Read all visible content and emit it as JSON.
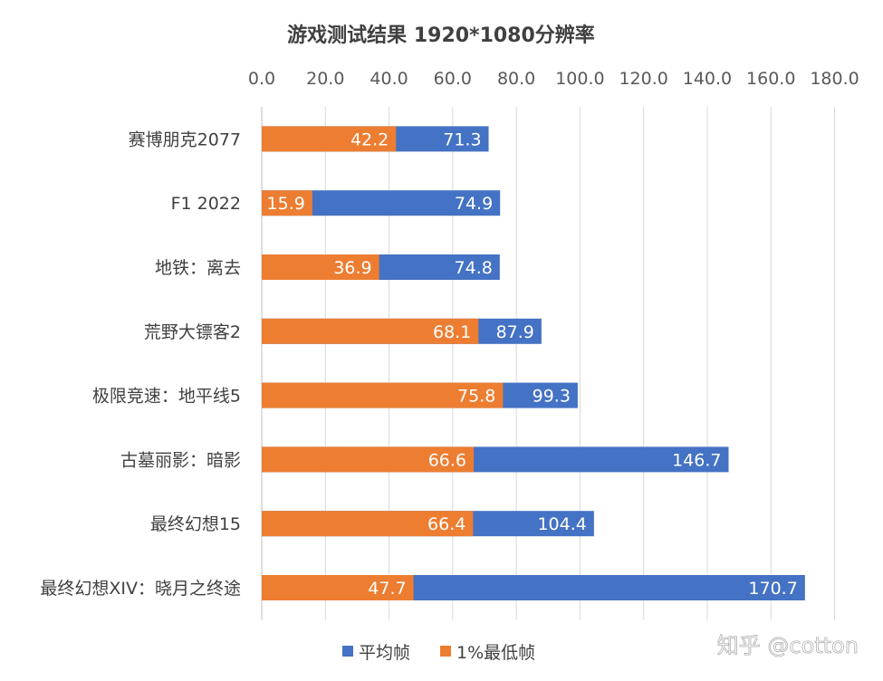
{
  "chart_data": {
    "type": "bar",
    "orientation": "horizontal",
    "stacking": "overlay",
    "title": "游戏测试结果 1920*1080分辨率",
    "categories": [
      "赛博朋克2077",
      "F1 2022",
      "地铁：离去",
      "荒野大镖客2",
      "极限竞速：地平线5",
      "古墓丽影：暗影",
      "最终幻想15",
      "最终幻想XIV：晓月之终途"
    ],
    "series": [
      {
        "name": "平均帧",
        "color": "#4472c4",
        "values": [
          71.3,
          74.9,
          74.8,
          87.9,
          99.3,
          146.7,
          104.4,
          170.7
        ]
      },
      {
        "name": "1%最低帧",
        "color": "#ed7d31",
        "values": [
          42.2,
          15.9,
          36.9,
          68.1,
          75.8,
          66.6,
          66.4,
          47.7
        ]
      }
    ],
    "xlim": [
      0,
      180
    ],
    "xticks": [
      "0.0",
      "20.0",
      "40.0",
      "60.0",
      "80.0",
      "100.0",
      "120.0",
      "140.0",
      "160.0",
      "180.0"
    ],
    "xaxis_position": "top",
    "grid": true,
    "legend": "bottom"
  },
  "watermark": "知乎 @cotton"
}
